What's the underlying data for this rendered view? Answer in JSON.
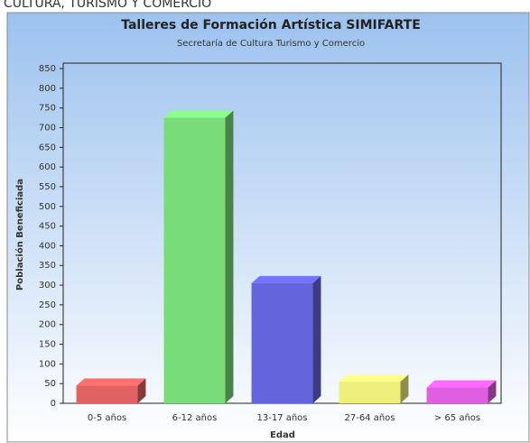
{
  "header": "CULTURA, TURISMO Y COMERCIO",
  "chart_data": {
    "type": "bar3d",
    "title": "Talleres de Formación Artística SIMIFARTE",
    "subtitle": "Secretaría de Cultura Turismo y Comercio",
    "x_label": "Edad",
    "y_label": "Población Beneficiada",
    "categories": [
      "0-5 años",
      "6-12 años",
      "13-17 años",
      "27-64 años",
      "> 65 años"
    ],
    "values": [
      45,
      725,
      305,
      55,
      40
    ],
    "colors": [
      "#e06262",
      "#78dc78",
      "#6464dc",
      "#eeee7a",
      "#e05ee0"
    ],
    "ylim": [
      0,
      850
    ],
    "yticks": [
      0,
      50,
      100,
      150,
      200,
      250,
      300,
      350,
      400,
      450,
      500,
      550,
      600,
      650,
      700,
      750,
      800,
      850
    ]
  }
}
